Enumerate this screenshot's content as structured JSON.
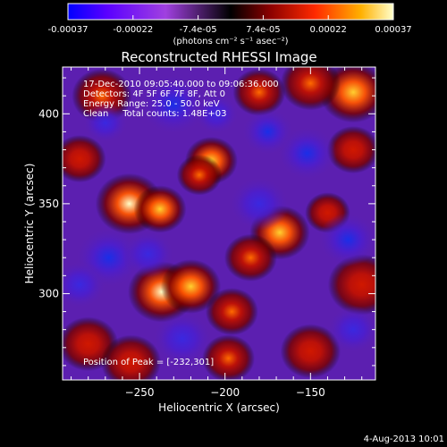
{
  "chart_data": {
    "type": "heatmap",
    "title": "Reconstructed RHESSI Image",
    "xlabel": "Heliocentric X (arcsec)",
    "ylabel": "Heliocentric Y (arcsec)",
    "xlim": [
      -295,
      -112
    ],
    "ylim": [
      252,
      426
    ],
    "x_ticks": [
      -250,
      -200,
      -150
    ],
    "x_tick_labels": [
      "−250",
      "−200",
      "−150"
    ],
    "y_ticks": [
      300,
      350,
      400
    ],
    "y_tick_labels": [
      "300",
      "350",
      "400"
    ],
    "colorbar": {
      "range": [
        -0.00037,
        0.00037
      ],
      "tick_labels": [
        "-0.00037",
        "-0.00022",
        "-7.4e-05",
        "7.4e-05",
        "0.00022",
        "0.00037"
      ],
      "units_label": "(photons cm⁻² s⁻¹ asec⁻²)",
      "colors": [
        "#0000ff",
        "#5a00ff",
        "#a040e0",
        "#000000",
        "#8a0000",
        "#ff2a00",
        "#ffb000",
        "#ffffcc"
      ]
    },
    "annotations": [
      "17-Dec-2010 09:05:40.000 to 09:06:36.000",
      "Detectors: 4F 5F 6F 7F 8F, Att 0",
      "Energy Range: 25.0 - 50.0 keV",
      "Clean     Total counts: 1.48E+03"
    ],
    "peak_label": "Position of Peak = [-232,301]",
    "peak_position": [
      -232,
      301
    ],
    "sources": [
      {
        "x": -237,
        "y": 301,
        "sigma": 9,
        "amp": 1.0
      },
      {
        "x": -220,
        "y": 304,
        "sigma": 8,
        "amp": 0.85
      },
      {
        "x": -256,
        "y": 350,
        "sigma": 9,
        "amp": 0.95
      },
      {
        "x": -238,
        "y": 347,
        "sigma": 7,
        "amp": 0.7
      },
      {
        "x": -208,
        "y": 374,
        "sigma": 7,
        "amp": 0.8
      },
      {
        "x": -215,
        "y": 366,
        "sigma": 6,
        "amp": 0.5
      },
      {
        "x": -125,
        "y": 412,
        "sigma": 9,
        "amp": 0.8
      },
      {
        "x": -150,
        "y": 417,
        "sigma": 8,
        "amp": 0.65
      },
      {
        "x": -180,
        "y": 412,
        "sigma": 7,
        "amp": 0.55
      },
      {
        "x": -168,
        "y": 334,
        "sigma": 8,
        "amp": 0.8
      },
      {
        "x": -185,
        "y": 320,
        "sigma": 7,
        "amp": 0.6
      },
      {
        "x": -196,
        "y": 290,
        "sigma": 7,
        "amp": 0.55
      },
      {
        "x": -198,
        "y": 264,
        "sigma": 7,
        "amp": 0.5
      },
      {
        "x": -272,
        "y": 410,
        "sigma": 8,
        "amp": 0.55
      },
      {
        "x": -285,
        "y": 375,
        "sigma": 7,
        "amp": 0.45
      },
      {
        "x": -280,
        "y": 272,
        "sigma": 8,
        "amp": 0.45
      },
      {
        "x": -255,
        "y": 262,
        "sigma": 8,
        "amp": 0.35
      },
      {
        "x": -120,
        "y": 305,
        "sigma": 9,
        "amp": 0.4
      },
      {
        "x": -125,
        "y": 380,
        "sigma": 7,
        "amp": 0.35
      },
      {
        "x": -150,
        "y": 268,
        "sigma": 8,
        "amp": 0.35
      },
      {
        "x": -140,
        "y": 345,
        "sigma": 6,
        "amp": 0.35
      },
      {
        "x": -175,
        "y": 390,
        "sigma": 7,
        "amp": -0.65
      },
      {
        "x": -152,
        "y": 378,
        "sigma": 8,
        "amp": -0.6
      },
      {
        "x": -230,
        "y": 405,
        "sigma": 9,
        "amp": -0.6
      },
      {
        "x": -268,
        "y": 320,
        "sigma": 9,
        "amp": -0.65
      },
      {
        "x": -245,
        "y": 322,
        "sigma": 7,
        "amp": -0.5
      },
      {
        "x": -128,
        "y": 330,
        "sigma": 8,
        "amp": -0.6
      },
      {
        "x": -225,
        "y": 275,
        "sigma": 8,
        "amp": -0.55
      },
      {
        "x": -125,
        "y": 280,
        "sigma": 7,
        "amp": -0.5
      },
      {
        "x": -285,
        "y": 305,
        "sigma": 7,
        "amp": -0.55
      },
      {
        "x": -180,
        "y": 350,
        "sigma": 8,
        "amp": -0.45
      },
      {
        "x": -270,
        "y": 395,
        "sigma": 6,
        "amp": -0.4
      },
      {
        "x": -205,
        "y": 400,
        "sigma": 6,
        "amp": -0.35
      }
    ]
  },
  "footer": {
    "date": "4-Aug-2013 10:01"
  }
}
